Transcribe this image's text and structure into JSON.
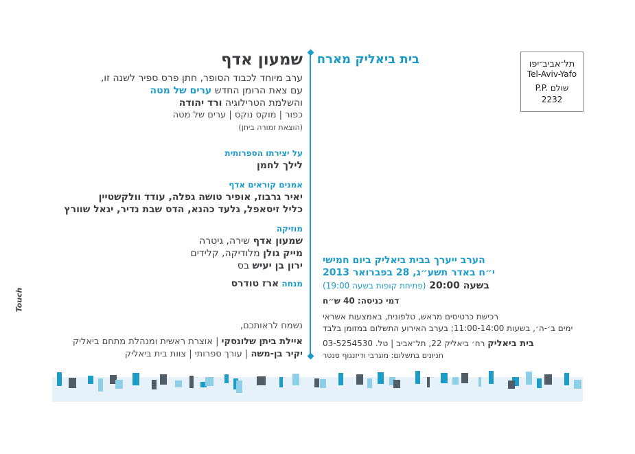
{
  "stamp": {
    "line1": "תל־אביב־יפו",
    "line2": "Tel-Aviv-Yafo",
    "line3": "P.P. שולם",
    "line4": "2232"
  },
  "host": "בית ביאליק מארח",
  "author": "שמעון אדף",
  "intro": {
    "line1": "ערב מיוחד לכבוד הסופר, חתן פרס ספיר לשנה זו,",
    "line2_pre": "עם צאת הרומן החדש ",
    "line2_book": "ערים של מטה",
    "line3_pre": "והשלמת הטרילוגיה ",
    "line3_book": "ורד יהודה",
    "books": "כפור | מוקס נוקס | ערים של מטה",
    "publisher": "(הוצאת זמורה ביתן)"
  },
  "lecture": {
    "heading": "על יצירתו הספרותית",
    "speaker": "לילך לחמן"
  },
  "readers": {
    "heading": "אמנים קוראים אדף",
    "line1": "יאיר גרבוז, אופיר טושה גפלה, עודד וולקשטיין",
    "line2": "כליל זיסאפל, גלעד כהנא, הדס שבת נדיר, יגאל שוורץ"
  },
  "music": {
    "heading": "מוזיקה",
    "performers": [
      {
        "name": "שמעון אדף",
        "role": " שירה, גיטרה"
      },
      {
        "name": "מייק גולן",
        "role": " מלודיקה, קלידים"
      },
      {
        "name": "ירון בן יעיש",
        "role": " בס"
      }
    ]
  },
  "host_person": {
    "label": "מנחה ",
    "name": "ארז טודרס"
  },
  "closing": {
    "greeting": "נשמח לראותכם,",
    "sig1_name": "איילת ביתן שלונסקי",
    "sig1_role": " | אוצרת ראשית ומנהלת מתחם ביאליק",
    "sig2_name": "יקיר בן-משה",
    "sig2_role": " | עורך ספרותי | צוות בית ביאליק"
  },
  "event": {
    "line1": "הערב ייערך בבית ביאליק ביום חמישי",
    "line2": "י״ח באדר תשע״ג, 28 בפברואר 2013",
    "time": "בשעה 20:00 ",
    "doors": "(פתיחת קופות בשעה 19:00)",
    "price": "דמי כניסה: 40 ש״ח",
    "tickets1": "רכישת כרטיסים מראש, טלפונית, באמצעות אשראי",
    "tickets2": "ימים ב׳-ה׳, בשעות 11:00-14:00; בערב האירוע התשלום במזומן בלבד",
    "venue_name": "בית ביאליק",
    "venue_address": " רח׳ ביאליק 22, תל־אביב | טל. 03-5254530",
    "parking": "חניונים בתשלום: מוגרבי ודיזנגוף סנטר"
  },
  "logo": "Touch",
  "colors": {
    "accent": "#1e9cc8",
    "dark": "#3a3d42",
    "band": "#e6f1f9",
    "light_blue": "#8ccfe6",
    "slate": "#505c68"
  }
}
